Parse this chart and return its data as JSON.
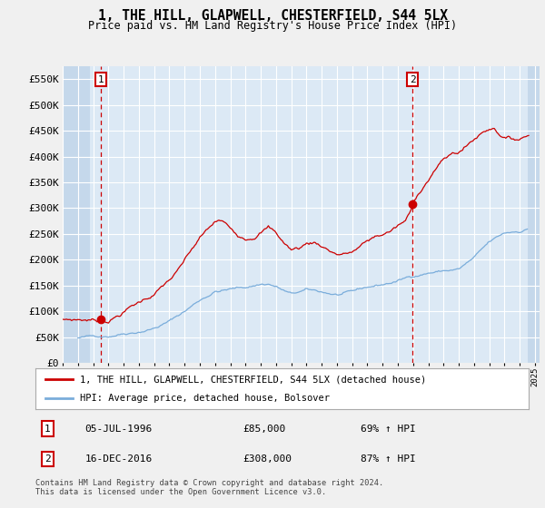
{
  "title": "1, THE HILL, GLAPWELL, CHESTERFIELD, S44 5LX",
  "subtitle": "Price paid vs. HM Land Registry's House Price Index (HPI)",
  "legend_line1": "1, THE HILL, GLAPWELL, CHESTERFIELD, S44 5LX (detached house)",
  "legend_line2": "HPI: Average price, detached house, Bolsover",
  "transaction1_date": "05-JUL-1996",
  "transaction1_price": "£85,000",
  "transaction1_hpi": "69% ↑ HPI",
  "transaction2_date": "16-DEC-2016",
  "transaction2_price": "£308,000",
  "transaction2_hpi": "87% ↑ HPI",
  "footer": "Contains HM Land Registry data © Crown copyright and database right 2024.\nThis data is licensed under the Open Government Licence v3.0.",
  "property_color": "#cc0000",
  "hpi_color": "#7aaddb",
  "plot_bg_color": "#dce9f5",
  "hatch_color": "#c5d8eb",
  "grid_color": "#ffffff",
  "ylim_max": 575000,
  "yticks": [
    0,
    50000,
    100000,
    150000,
    200000,
    250000,
    300000,
    350000,
    400000,
    450000,
    500000,
    550000
  ],
  "ytick_labels": [
    "£0",
    "£50K",
    "£100K",
    "£150K",
    "£200K",
    "£250K",
    "£300K",
    "£350K",
    "£400K",
    "£450K",
    "£500K",
    "£550K"
  ],
  "xmin": 1994,
  "xmax": 2025.3,
  "transaction1_x": 1996.52,
  "transaction1_y": 85000,
  "transaction2_x": 2016.96,
  "transaction2_y": 308000
}
